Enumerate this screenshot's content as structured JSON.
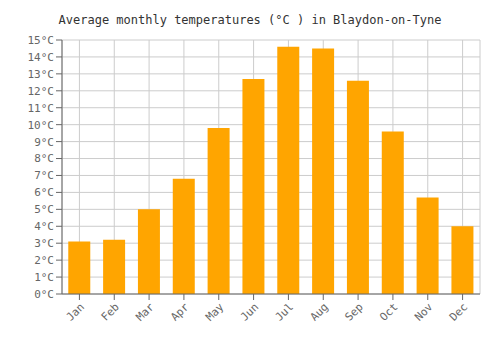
{
  "chart_data": {
    "type": "bar",
    "title": "Average monthly temperatures (°C ) in Blaydon-on-Tyne",
    "categories": [
      "Jan",
      "Feb",
      "Mar",
      "Apr",
      "May",
      "Jun",
      "Jul",
      "Aug",
      "Sep",
      "Oct",
      "Nov",
      "Dec"
    ],
    "values": [
      3.1,
      3.2,
      5.0,
      6.8,
      9.8,
      12.7,
      14.6,
      14.5,
      12.6,
      9.6,
      5.7,
      4.0
    ],
    "color": "#FFA500",
    "ylim": [
      0,
      15
    ],
    "yticks": [
      {
        "value": 0,
        "label": "0°C"
      },
      {
        "value": 1,
        "label": "1°C"
      },
      {
        "value": 2,
        "label": "2°C"
      },
      {
        "value": 3,
        "label": "3°C"
      },
      {
        "value": 4,
        "label": "4°C"
      },
      {
        "value": 5,
        "label": "5°C"
      },
      {
        "value": 6,
        "label": "6°C"
      },
      {
        "value": 7,
        "label": "7°C"
      },
      {
        "value": 8,
        "label": "8°C"
      },
      {
        "value": 9,
        "label": "9°C"
      },
      {
        "value": 10,
        "label": "10°C"
      },
      {
        "value": 11,
        "label": "11°C"
      },
      {
        "value": 12,
        "label": "12°C"
      },
      {
        "value": 13,
        "label": "13°C"
      },
      {
        "value": 14,
        "label": "14°C"
      },
      {
        "value": 15,
        "label": "15°C"
      }
    ],
    "grid": true
  }
}
